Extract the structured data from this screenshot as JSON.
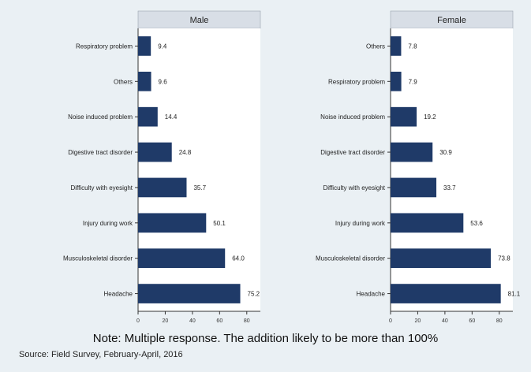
{
  "chart_data": {
    "type": "bar",
    "orientation": "horizontal",
    "grid": false,
    "xlim": [
      0,
      90
    ],
    "xticks": [
      0,
      20,
      40,
      60,
      80
    ],
    "bar_color": "#1f3a68",
    "panel_header_color": "#d8dee6",
    "panels": [
      {
        "title": "Male",
        "categories": [
          "Respiratory problem",
          "Others",
          "Noise induced problem",
          "Digestive tract disorder",
          "Difficulty with eyesight",
          "Injury during work",
          "Musculoskeletal disorder",
          "Headache"
        ],
        "values": [
          9.4,
          9.6,
          14.4,
          24.8,
          35.7,
          50.1,
          64.0,
          75.2
        ],
        "labels": [
          "9.4",
          "9.6",
          "14.4",
          "24.8",
          "35.7",
          "50.1",
          "64.0",
          "75.2"
        ]
      },
      {
        "title": "Female",
        "categories": [
          "Others",
          "Respiratory problem",
          "Noise induced problem",
          "Digestive tract disorder",
          "Difficulty with eyesight",
          "Injury during work",
          "Musculoskeletal disorder",
          "Headache"
        ],
        "values": [
          7.8,
          7.9,
          19.2,
          30.9,
          33.7,
          53.6,
          73.8,
          81.1
        ],
        "labels": [
          "7.8",
          "7.9",
          "19.2",
          "30.9",
          "33.7",
          "53.6",
          "73.8",
          "81.1"
        ]
      }
    ]
  },
  "note": "Note: Multiple response. The addition likely to be more than 100%",
  "source": "Source: Field Survey, February-April, 2016"
}
